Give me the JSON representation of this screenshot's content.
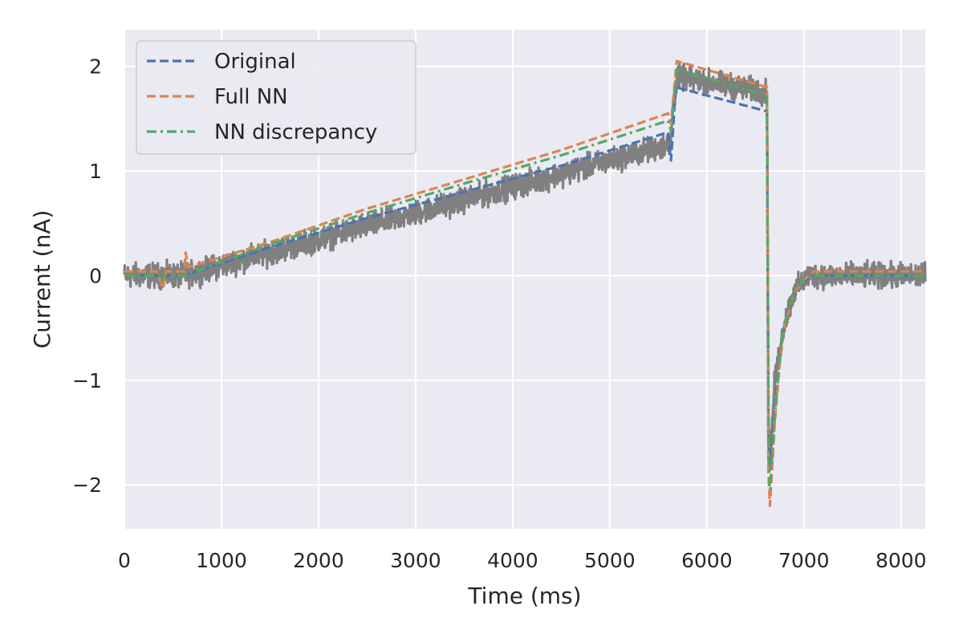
{
  "chart_data": {
    "type": "line",
    "title": "",
    "xlabel": "Time (ms)",
    "ylabel": "Current (nA)",
    "xlim": [
      0,
      8250
    ],
    "ylim": [
      -2.42,
      2.35
    ],
    "xticks": [
      0,
      1000,
      2000,
      3000,
      4000,
      5000,
      6000,
      7000,
      8000
    ],
    "yticks": [
      -2,
      -1,
      0,
      1,
      2
    ],
    "ytick_labels": [
      "−2",
      "−1",
      "0",
      "1",
      "2"
    ],
    "grid": true,
    "background": "#eaeaf2",
    "legend_position": "top-left",
    "noisy_data": {
      "color": "#808080",
      "noise_amplitude": 0.17,
      "x": [
        0,
        620,
        5600,
        5620,
        5660,
        5700,
        6620,
        6635,
        6650,
        6700,
        6800,
        6900,
        7050,
        7150,
        8250
      ],
      "y": [
        0.0,
        0.0,
        1.25,
        1.2,
        1.7,
        1.9,
        1.75,
        -1.4,
        -1.8,
        -1.0,
        -0.45,
        -0.15,
        0.0,
        0.0,
        0.0
      ]
    },
    "series": [
      {
        "name": "Original",
        "color": "#4c72b0",
        "dash": "dashed",
        "x": [
          0,
          620,
          1500,
          2500,
          3500,
          4500,
          5600,
          5630,
          5680,
          6620,
          6635,
          6650,
          6700,
          6750,
          6800,
          6900,
          7000,
          7100,
          8250
        ],
        "y": [
          0.0,
          0.0,
          0.27,
          0.55,
          0.8,
          1.05,
          1.37,
          1.1,
          1.8,
          1.57,
          -1.6,
          -1.85,
          -1.3,
          -0.8,
          -0.45,
          -0.17,
          -0.05,
          0.0,
          0.0
        ]
      },
      {
        "name": "Full NN",
        "color": "#dd8452",
        "dash": "dashed",
        "x": [
          0,
          330,
          400,
          430,
          620,
          630,
          660,
          1500,
          2500,
          3500,
          4500,
          5600,
          5630,
          5690,
          6620,
          6635,
          6650,
          6700,
          6750,
          6800,
          6900,
          7000,
          7100,
          8250
        ],
        "y": [
          0.04,
          0.04,
          -0.12,
          0.04,
          0.04,
          0.22,
          0.08,
          0.32,
          0.64,
          0.92,
          1.2,
          1.55,
          1.45,
          2.05,
          1.8,
          -1.9,
          -2.2,
          -1.4,
          -0.85,
          -0.47,
          -0.17,
          -0.04,
          0.04,
          0.04
        ]
      },
      {
        "name": "NN discrepancy",
        "color": "#55a868",
        "dash": "dashdot",
        "x": [
          0,
          370,
          390,
          410,
          620,
          1500,
          2500,
          3500,
          4500,
          5600,
          5630,
          5690,
          6620,
          6635,
          6650,
          6700,
          6750,
          6800,
          6900,
          7000,
          7100,
          8250
        ],
        "y": [
          0.0,
          0.0,
          -0.05,
          0.0,
          0.0,
          0.3,
          0.6,
          0.88,
          1.15,
          1.48,
          1.38,
          1.97,
          1.72,
          -1.75,
          -2.05,
          -1.35,
          -0.82,
          -0.45,
          -0.16,
          -0.03,
          0.0,
          0.0
        ]
      }
    ]
  }
}
